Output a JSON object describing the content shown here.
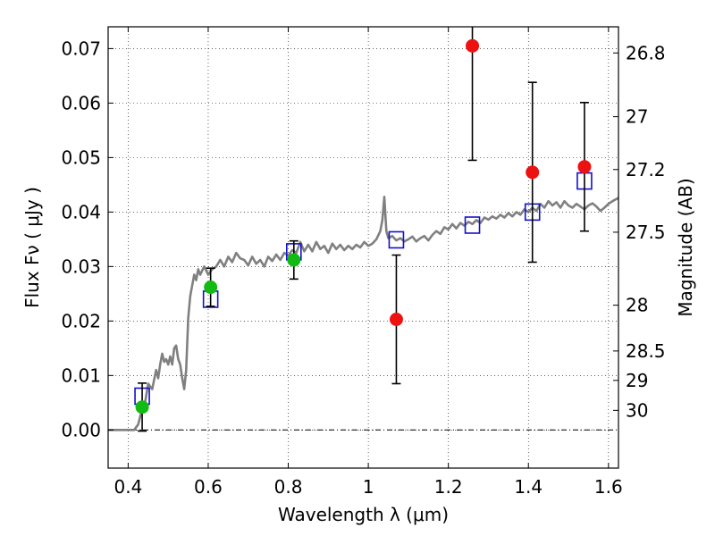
{
  "chart_data": {
    "type": "scatter",
    "xlabel": "Wavelength  λ (μm)",
    "ylabel_left": "Flux  Fν  ( μJy )",
    "ylabel_right": "Magnitude (AB)",
    "xlim": [
      0.35,
      1.625
    ],
    "ylim": [
      -0.007,
      0.074
    ],
    "grid": true,
    "xticks": [
      0.4,
      0.6,
      0.8,
      1.0,
      1.2,
      1.4,
      1.6
    ],
    "xtick_labels": [
      "0.4",
      "0.6",
      "0.8",
      "1",
      "1.2",
      "1.4",
      "1.6"
    ],
    "yticks": [
      0.0,
      0.01,
      0.02,
      0.03,
      0.04,
      0.05,
      0.06,
      0.07
    ],
    "ytick_labels": [
      "0.00",
      "0.01",
      "0.02",
      "0.03",
      "0.04",
      "0.05",
      "0.06",
      "0.07"
    ],
    "right_ticks": [
      {
        "label": "26.8",
        "flux": 0.0692
      },
      {
        "label": "27",
        "flux": 0.0575
      },
      {
        "label": "27.2",
        "flux": 0.0478
      },
      {
        "label": "27.5",
        "flux": 0.0363
      },
      {
        "label": "28",
        "flux": 0.0229
      },
      {
        "label": "28.5",
        "flux": 0.0145
      },
      {
        "label": "29",
        "flux": 0.0091
      },
      {
        "label": "30",
        "flux": 0.0036
      }
    ],
    "colors": {
      "detection": "#11bb11",
      "upper": "#ee1111",
      "model_box": "#1111cc",
      "sed": "#808080",
      "errorbar": "#000000"
    },
    "series": [
      {
        "kind": "detections",
        "points": [
          {
            "x": 0.435,
            "y": 0.0042,
            "yerr": 0.0044
          },
          {
            "x": 0.606,
            "y": 0.0262,
            "yerr": 0.0035
          },
          {
            "x": 0.814,
            "y": 0.0312,
            "yerr": 0.0035
          }
        ]
      },
      {
        "kind": "non-detections",
        "points": [
          {
            "x": 1.07,
            "y": 0.0203,
            "yerr": 0.0118
          },
          {
            "x": 1.26,
            "y": 0.0705,
            "yerr": 0.021
          },
          {
            "x": 1.41,
            "y": 0.0473,
            "yerr": 0.0165
          },
          {
            "x": 1.54,
            "y": 0.0483,
            "yerr": 0.0118
          }
        ]
      },
      {
        "kind": "model-photometry",
        "points": [
          {
            "x": 0.435,
            "y": 0.0062
          },
          {
            "x": 0.606,
            "y": 0.024
          },
          {
            "x": 0.814,
            "y": 0.0327
          },
          {
            "x": 1.07,
            "y": 0.0349
          },
          {
            "x": 1.26,
            "y": 0.0376
          },
          {
            "x": 1.41,
            "y": 0.04
          },
          {
            "x": 1.54,
            "y": 0.0457
          }
        ]
      },
      {
        "kind": "sed-model",
        "points": [
          [
            0.35,
            0.0
          ],
          [
            0.4,
            0.0
          ],
          [
            0.415,
            0.0
          ],
          [
            0.425,
            0.001
          ],
          [
            0.432,
            0.003
          ],
          [
            0.44,
            0.004
          ],
          [
            0.45,
            0.0085
          ],
          [
            0.46,
            0.0075
          ],
          [
            0.47,
            0.011
          ],
          [
            0.475,
            0.0095
          ],
          [
            0.48,
            0.012
          ],
          [
            0.485,
            0.014
          ],
          [
            0.49,
            0.0125
          ],
          [
            0.495,
            0.013
          ],
          [
            0.5,
            0.012
          ],
          [
            0.505,
            0.0135
          ],
          [
            0.51,
            0.012
          ],
          [
            0.515,
            0.015
          ],
          [
            0.52,
            0.0155
          ],
          [
            0.525,
            0.013
          ],
          [
            0.53,
            0.012
          ],
          [
            0.535,
            0.0095
          ],
          [
            0.54,
            0.0075
          ],
          [
            0.545,
            0.011
          ],
          [
            0.55,
            0.0205
          ],
          [
            0.555,
            0.0245
          ],
          [
            0.56,
            0.0265
          ],
          [
            0.565,
            0.0285
          ],
          [
            0.57,
            0.0275
          ],
          [
            0.575,
            0.0295
          ],
          [
            0.58,
            0.0285
          ],
          [
            0.59,
            0.03
          ],
          [
            0.6,
            0.0285
          ],
          [
            0.61,
            0.0295
          ],
          [
            0.62,
            0.03
          ],
          [
            0.63,
            0.0312
          ],
          [
            0.64,
            0.03
          ],
          [
            0.65,
            0.0318
          ],
          [
            0.66,
            0.0308
          ],
          [
            0.67,
            0.0325
          ],
          [
            0.68,
            0.0315
          ],
          [
            0.69,
            0.0312
          ],
          [
            0.7,
            0.0302
          ],
          [
            0.71,
            0.0318
          ],
          [
            0.72,
            0.0305
          ],
          [
            0.73,
            0.0312
          ],
          [
            0.74,
            0.03
          ],
          [
            0.75,
            0.0318
          ],
          [
            0.76,
            0.031
          ],
          [
            0.77,
            0.0322
          ],
          [
            0.78,
            0.0312
          ],
          [
            0.79,
            0.0325
          ],
          [
            0.8,
            0.032
          ],
          [
            0.81,
            0.033
          ],
          [
            0.82,
            0.0325
          ],
          [
            0.83,
            0.0345
          ],
          [
            0.84,
            0.0328
          ],
          [
            0.85,
            0.034
          ],
          [
            0.86,
            0.0328
          ],
          [
            0.87,
            0.0345
          ],
          [
            0.88,
            0.0332
          ],
          [
            0.89,
            0.0338
          ],
          [
            0.9,
            0.0325
          ],
          [
            0.91,
            0.0342
          ],
          [
            0.92,
            0.0332
          ],
          [
            0.93,
            0.034
          ],
          [
            0.94,
            0.033
          ],
          [
            0.95,
            0.0338
          ],
          [
            0.96,
            0.0332
          ],
          [
            0.97,
            0.034
          ],
          [
            0.98,
            0.0335
          ],
          [
            0.99,
            0.0345
          ],
          [
            1.0,
            0.0338
          ],
          [
            1.01,
            0.0342
          ],
          [
            1.02,
            0.035
          ],
          [
            1.03,
            0.0365
          ],
          [
            1.035,
            0.0385
          ],
          [
            1.04,
            0.0428
          ],
          [
            1.045,
            0.0365
          ],
          [
            1.05,
            0.0352
          ],
          [
            1.06,
            0.0356
          ],
          [
            1.07,
            0.0348
          ],
          [
            1.08,
            0.0352
          ],
          [
            1.09,
            0.0346
          ],
          [
            1.1,
            0.035
          ],
          [
            1.11,
            0.0355
          ],
          [
            1.12,
            0.0346
          ],
          [
            1.13,
            0.0352
          ],
          [
            1.14,
            0.0356
          ],
          [
            1.15,
            0.0348
          ],
          [
            1.16,
            0.0358
          ],
          [
            1.17,
            0.0365
          ],
          [
            1.18,
            0.036
          ],
          [
            1.19,
            0.0372
          ],
          [
            1.2,
            0.0368
          ],
          [
            1.21,
            0.0378
          ],
          [
            1.22,
            0.037
          ],
          [
            1.23,
            0.038
          ],
          [
            1.24,
            0.0375
          ],
          [
            1.25,
            0.0382
          ],
          [
            1.26,
            0.0378
          ],
          [
            1.27,
            0.0385
          ],
          [
            1.28,
            0.038
          ],
          [
            1.29,
            0.039
          ],
          [
            1.3,
            0.0386
          ],
          [
            1.31,
            0.0392
          ],
          [
            1.32,
            0.0388
          ],
          [
            1.33,
            0.0395
          ],
          [
            1.34,
            0.039
          ],
          [
            1.35,
            0.0398
          ],
          [
            1.36,
            0.0392
          ],
          [
            1.37,
            0.04
          ],
          [
            1.38,
            0.0395
          ],
          [
            1.39,
            0.0405
          ],
          [
            1.4,
            0.04
          ],
          [
            1.41,
            0.0408
          ],
          [
            1.42,
            0.0402
          ],
          [
            1.43,
            0.0415
          ],
          [
            1.44,
            0.0408
          ],
          [
            1.45,
            0.042
          ],
          [
            1.46,
            0.0412
          ],
          [
            1.47,
            0.0418
          ],
          [
            1.48,
            0.0408
          ],
          [
            1.49,
            0.042
          ],
          [
            1.5,
            0.0412
          ],
          [
            1.51,
            0.0408
          ],
          [
            1.52,
            0.0415
          ],
          [
            1.53,
            0.041
          ],
          [
            1.54,
            0.0405
          ],
          [
            1.55,
            0.0412
          ],
          [
            1.56,
            0.0416
          ],
          [
            1.57,
            0.041
          ],
          [
            1.58,
            0.0402
          ],
          [
            1.59,
            0.0408
          ],
          [
            1.6,
            0.0415
          ],
          [
            1.61,
            0.042
          ],
          [
            1.625,
            0.0426
          ]
        ]
      }
    ]
  }
}
